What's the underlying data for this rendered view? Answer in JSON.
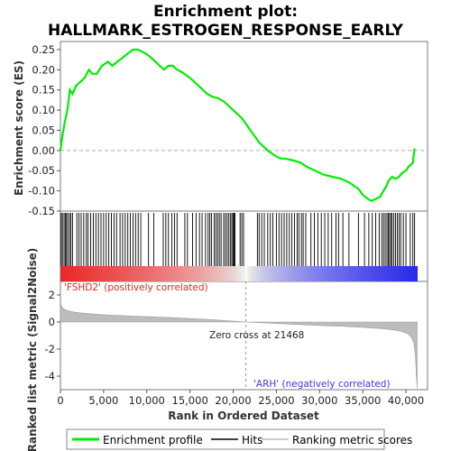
{
  "chart_data": {
    "type": "line",
    "title_line1": "Enrichment plot:",
    "title_line2": "HALLMARK_ESTROGEN_RESPONSE_EARLY",
    "es_panel": {
      "ylabel": "Enrichment score (ES)",
      "ylim": [
        -0.15,
        0.27
      ],
      "yticks": [
        "0.25",
        "0.20",
        "0.15",
        "0.10",
        "0.05",
        "0.00",
        "-0.05",
        "-0.10",
        "-0.15"
      ],
      "ytick_values": [
        0.25,
        0.2,
        0.15,
        0.1,
        0.05,
        0.0,
        -0.05,
        -0.1,
        -0.15
      ],
      "series": [
        {
          "name": "Enrichment profile",
          "color": "#00ee00",
          "x": [
            0,
            250,
            500,
            800,
            1100,
            1400,
            1800,
            2300,
            2800,
            3300,
            3700,
            4200,
            4800,
            5500,
            6000,
            6600,
            7200,
            7800,
            8400,
            9000,
            9400,
            9900,
            10500,
            11000,
            11500,
            12000,
            12500,
            13000,
            13500,
            14000,
            15000,
            16000,
            17000,
            17600,
            18200,
            19000,
            20000,
            21000,
            22000,
            23000,
            24000,
            25000,
            25500,
            26000,
            27000,
            27800,
            28500,
            29500,
            30500,
            31500,
            32500,
            33500,
            34500,
            35000,
            35600,
            36000,
            36500,
            37000,
            37400,
            37700,
            38000,
            38400,
            38800,
            39200,
            39600,
            40000,
            40300,
            40600,
            40800,
            41000
          ],
          "y": [
            0.0,
            0.04,
            0.07,
            0.1,
            0.15,
            0.14,
            0.16,
            0.17,
            0.18,
            0.2,
            0.19,
            0.19,
            0.21,
            0.22,
            0.21,
            0.22,
            0.23,
            0.24,
            0.25,
            0.25,
            0.245,
            0.24,
            0.23,
            0.22,
            0.21,
            0.2,
            0.21,
            0.21,
            0.2,
            0.195,
            0.18,
            0.16,
            0.14,
            0.133,
            0.13,
            0.12,
            0.1,
            0.08,
            0.05,
            0.02,
            0.0,
            -0.015,
            -0.02,
            -0.02,
            -0.025,
            -0.03,
            -0.04,
            -0.05,
            -0.06,
            -0.065,
            -0.07,
            -0.08,
            -0.095,
            -0.11,
            -0.12,
            -0.125,
            -0.12,
            -0.115,
            -0.1,
            -0.09,
            -0.075,
            -0.065,
            -0.07,
            -0.065,
            -0.055,
            -0.05,
            -0.04,
            -0.035,
            -0.03,
            0.005
          ]
        }
      ]
    },
    "hits_panel": {
      "hits": [
        90,
        230,
        420,
        560,
        700,
        850,
        1050,
        1200,
        1400,
        1900,
        2150,
        2400,
        2700,
        3000,
        3200,
        3500,
        3800,
        4100,
        4400,
        4700,
        5000,
        5300,
        5600,
        5900,
        6200,
        6500,
        6900,
        7200,
        7500,
        7800,
        8100,
        8400,
        8700,
        9000,
        9300,
        10200,
        10800,
        11900,
        12200,
        12500,
        12900,
        13200,
        13500,
        14400,
        14700,
        15300,
        15700,
        16100,
        16400,
        16800,
        17100,
        17300,
        17500,
        17800,
        18000,
        18200,
        18400,
        18600,
        18900,
        19100,
        19300,
        19500,
        19700,
        19850,
        20000,
        20100,
        20200,
        20800,
        21000,
        21200,
        22800,
        23000,
        23300,
        23600,
        24000,
        24300,
        24600,
        25000,
        25300,
        25600,
        25900,
        26200,
        26500,
        26800,
        27100,
        27400,
        27600,
        27900,
        28100,
        28400,
        29000,
        29400,
        29800,
        30200,
        30600,
        31000,
        31400,
        31900,
        32200,
        32700,
        33400,
        34500,
        35200,
        35700,
        36100,
        36500,
        36900,
        37200,
        37400,
        37600,
        37800,
        37950,
        38100,
        38250,
        38400,
        38600,
        38800,
        39000,
        39200,
        39400,
        39700,
        40000,
        40500,
        40800,
        41000
      ]
    },
    "rank_panel": {
      "ylabel": "Ranked list metric (Signal2Noise)",
      "ylim": [
        -5,
        3
      ],
      "yticks": [
        "2",
        "0",
        "-2",
        "-4"
      ],
      "ytick_values": [
        2,
        0,
        -2,
        -4
      ],
      "profile_x": [
        0,
        100,
        300,
        600,
        1000,
        1500,
        2500,
        4000,
        6000,
        9000,
        13000,
        17000,
        21468,
        26000,
        30000,
        33000,
        35000,
        37000,
        38500,
        39500,
        40200,
        40600,
        40900,
        41100,
        41200,
        41300
      ],
      "profile_y": [
        1.5,
        1.2,
        1.0,
        0.9,
        0.82,
        0.74,
        0.66,
        0.58,
        0.5,
        0.42,
        0.32,
        0.2,
        0.0,
        -0.14,
        -0.25,
        -0.33,
        -0.4,
        -0.48,
        -0.58,
        -0.7,
        -0.85,
        -1.1,
        -1.5,
        -2.5,
        -4.0,
        -4.9
      ],
      "pos_label": "'FSHD2' (positively correlated)",
      "neg_label": "'ARH' (negatively correlated)",
      "zero_cross_label": "Zero cross at 21468",
      "zero_cross": 21468
    },
    "xaxis": {
      "label": "Rank in Ordered Dataset",
      "xlim": [
        0,
        42500
      ],
      "ticks": [
        "0",
        "5,000",
        "10,000",
        "15,000",
        "20,000",
        "25,000",
        "30,000",
        "35,000",
        "40,000"
      ],
      "tick_values": [
        0,
        5000,
        10000,
        15000,
        20000,
        25000,
        30000,
        35000,
        40000
      ],
      "n_genes": 41300
    },
    "legend": {
      "items": [
        {
          "label": "Enrichment profile",
          "color": "#00ee00"
        },
        {
          "label": "Hits",
          "color": "#000000"
        },
        {
          "label": "Ranking metric scores",
          "color": "#bbbbbb"
        }
      ]
    }
  }
}
